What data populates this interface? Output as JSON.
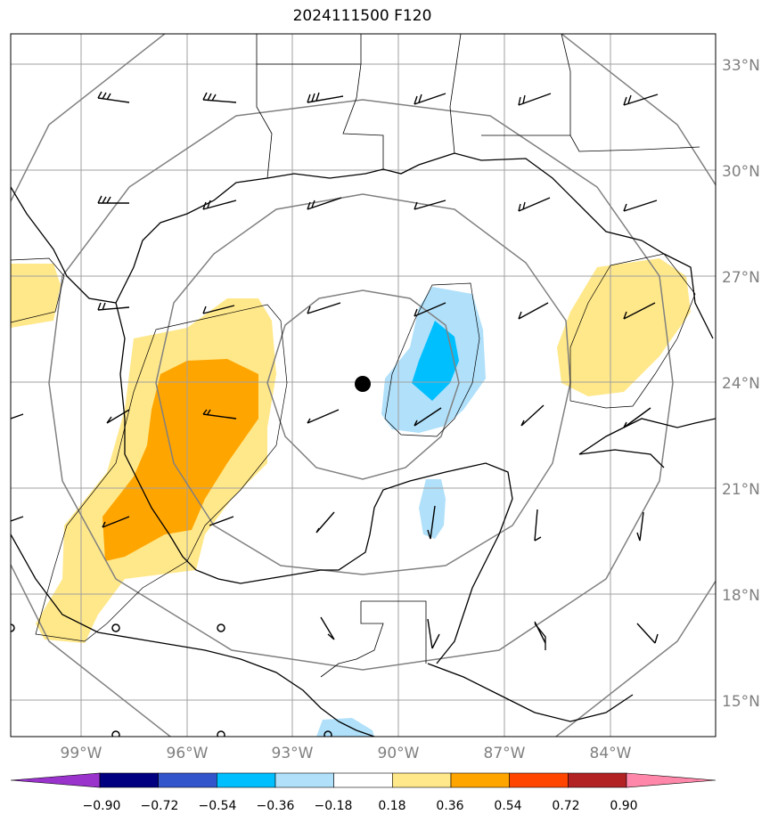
{
  "title": "2024111500 F120",
  "map": {
    "lat_labels": [
      "33°N",
      "30°N",
      "27°N",
      "24°N",
      "21°N",
      "18°N",
      "15°N"
    ],
    "lon_labels": [
      "99°W",
      "96°W",
      "93°W",
      "90°W",
      "87°W",
      "84°W"
    ],
    "center_marker": "storm-center",
    "range_rings": 4
  },
  "colorbar": {
    "tick_labels": [
      "−0.90",
      "−0.72",
      "−0.54",
      "−0.36",
      "−0.18",
      "0.18",
      "0.36",
      "0.54",
      "0.72",
      "0.90"
    ],
    "colors": [
      "#9933cc",
      "#000080",
      "#3355cc",
      "#00bfff",
      "#b0e0fa",
      "#ffffff",
      "#ffe88a",
      "#ffa500",
      "#ff4500",
      "#b22222",
      "#ff88aa"
    ]
  }
}
